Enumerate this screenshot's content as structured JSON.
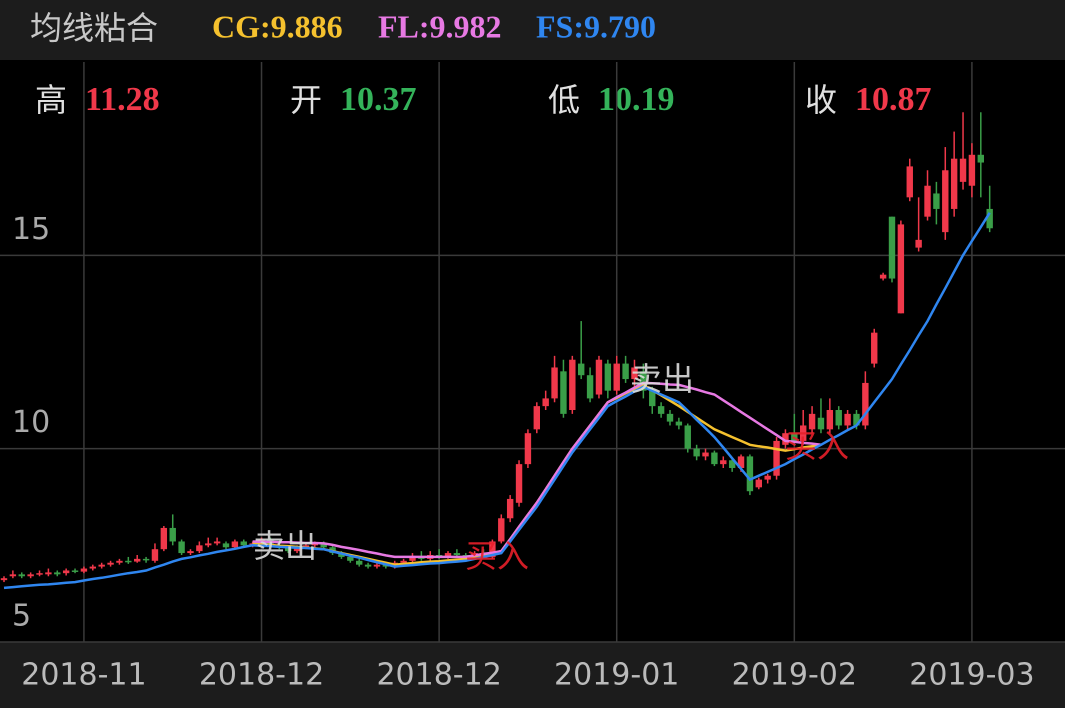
{
  "chart_data": {
    "type": "candlestick",
    "title": "均线粘合",
    "info": [
      {
        "label": "高",
        "value": 11.28,
        "color": "#f0384a"
      },
      {
        "label": "开",
        "value": 10.37,
        "color": "#34b35a"
      },
      {
        "label": "低",
        "value": 10.19,
        "color": "#34b35a"
      },
      {
        "label": "收",
        "value": 10.87,
        "color": "#f0384a"
      }
    ],
    "up_color": "#f0384a",
    "down_color": "#3a9e48",
    "ylim": [
      5,
      20
    ],
    "yticks": [
      5,
      10,
      15
    ],
    "grid": true,
    "categories": [
      null,
      null,
      null,
      null,
      null,
      null,
      null,
      null,
      null,
      "2018-11",
      null,
      null,
      null,
      null,
      null,
      null,
      null,
      null,
      null,
      null,
      null,
      null,
      null,
      null,
      null,
      null,
      null,
      null,
      null,
      "2018-12",
      null,
      null,
      null,
      null,
      null,
      null,
      null,
      null,
      null,
      null,
      null,
      null,
      null,
      null,
      null,
      null,
      null,
      null,
      null,
      "2018-12",
      null,
      null,
      null,
      null,
      null,
      null,
      null,
      null,
      null,
      null,
      null,
      null,
      null,
      null,
      null,
      null,
      null,
      null,
      null,
      "2019-01",
      null,
      null,
      null,
      null,
      null,
      null,
      null,
      null,
      null,
      null,
      null,
      null,
      null,
      null,
      null,
      null,
      null,
      null,
      null,
      "2019-02",
      null,
      null,
      null,
      null,
      null,
      null,
      null,
      null,
      null,
      null,
      null,
      null,
      null,
      null,
      null,
      null,
      null,
      null,
      null,
      "2019-03",
      null,
      null
    ],
    "ohlc": [
      [
        6.6,
        6.65,
        6.55,
        6.7
      ],
      [
        6.7,
        6.75,
        6.65,
        6.85
      ],
      [
        6.75,
        6.7,
        6.65,
        6.8
      ],
      [
        6.7,
        6.75,
        6.65,
        6.8
      ],
      [
        6.75,
        6.78,
        6.7,
        6.85
      ],
      [
        6.75,
        6.8,
        6.7,
        6.9
      ],
      [
        6.8,
        6.75,
        6.7,
        6.85
      ],
      [
        6.78,
        6.85,
        6.72,
        6.9
      ],
      [
        6.85,
        6.82,
        6.78,
        6.9
      ],
      [
        6.82,
        6.9,
        6.78,
        6.95
      ],
      [
        6.9,
        6.95,
        6.85,
        7.0
      ],
      [
        6.95,
        7.0,
        6.9,
        7.05
      ],
      [
        7.0,
        7.05,
        6.95,
        7.1
      ],
      [
        7.05,
        7.1,
        7.0,
        7.15
      ],
      [
        7.1,
        7.08,
        7.02,
        7.2
      ],
      [
        7.08,
        7.15,
        7.05,
        7.25
      ],
      [
        7.15,
        7.12,
        7.05,
        7.2
      ],
      [
        7.1,
        7.4,
        7.05,
        7.55
      ],
      [
        7.4,
        7.95,
        7.35,
        8.0
      ],
      [
        7.95,
        7.6,
        7.5,
        8.3
      ],
      [
        7.6,
        7.3,
        7.25,
        7.65
      ],
      [
        7.3,
        7.35,
        7.25,
        7.4
      ],
      [
        7.35,
        7.5,
        7.3,
        7.6
      ],
      [
        7.5,
        7.55,
        7.45,
        7.7
      ],
      [
        7.55,
        7.6,
        7.5,
        7.7
      ],
      [
        7.55,
        7.45,
        7.4,
        7.6
      ],
      [
        7.45,
        7.6,
        7.4,
        7.65
      ],
      [
        7.6,
        7.5,
        7.45,
        7.65
      ],
      [
        7.5,
        7.55,
        7.45,
        7.6
      ],
      [
        7.55,
        7.65,
        7.5,
        7.7
      ],
      [
        7.65,
        7.5,
        7.45,
        7.7
      ],
      [
        7.5,
        7.45,
        7.4,
        7.55
      ],
      [
        7.45,
        7.35,
        7.3,
        7.5
      ],
      [
        7.35,
        7.45,
        7.3,
        7.5
      ],
      [
        7.45,
        7.5,
        7.4,
        7.55
      ],
      [
        7.5,
        7.55,
        7.45,
        7.6
      ],
      [
        7.55,
        7.45,
        7.4,
        7.6
      ],
      [
        7.45,
        7.3,
        7.25,
        7.5
      ],
      [
        7.3,
        7.2,
        7.15,
        7.35
      ],
      [
        7.2,
        7.1,
        7.05,
        7.25
      ],
      [
        7.1,
        7.0,
        6.95,
        7.15
      ],
      [
        7.0,
        6.95,
        6.9,
        7.05
      ],
      [
        6.95,
        7.0,
        6.9,
        7.05
      ],
      [
        7.0,
        6.95,
        6.9,
        7.05
      ],
      [
        6.95,
        7.05,
        6.9,
        7.1
      ],
      [
        7.05,
        7.1,
        7.0,
        7.15
      ],
      [
        7.1,
        7.2,
        7.05,
        7.3
      ],
      [
        7.2,
        7.15,
        7.1,
        7.35
      ],
      [
        7.15,
        7.25,
        7.1,
        7.35
      ],
      [
        7.25,
        7.2,
        7.15,
        7.4
      ],
      [
        7.2,
        7.3,
        7.15,
        7.35
      ],
      [
        7.3,
        7.25,
        7.2,
        7.4
      ],
      [
        7.25,
        7.2,
        7.15,
        7.3
      ],
      [
        7.2,
        7.3,
        7.15,
        7.35
      ],
      [
        7.3,
        7.25,
        7.2,
        7.4
      ],
      [
        7.2,
        7.6,
        7.15,
        7.65
      ],
      [
        7.6,
        8.2,
        7.55,
        8.3
      ],
      [
        8.2,
        8.7,
        8.1,
        8.8
      ],
      [
        8.6,
        9.6,
        8.5,
        9.7
      ],
      [
        9.6,
        10.4,
        9.5,
        10.5
      ],
      [
        10.5,
        11.1,
        10.4,
        11.2
      ],
      [
        11.1,
        11.3,
        11.0,
        11.5
      ],
      [
        11.3,
        12.1,
        11.2,
        12.4
      ],
      [
        12.0,
        10.9,
        10.8,
        12.3
      ],
      [
        11.0,
        12.3,
        10.9,
        12.4
      ],
      [
        12.2,
        11.9,
        11.8,
        13.3
      ],
      [
        11.9,
        11.3,
        11.2,
        12.1
      ],
      [
        11.4,
        12.3,
        11.3,
        12.4
      ],
      [
        12.2,
        11.5,
        11.3,
        12.3
      ],
      [
        11.5,
        12.2,
        11.4,
        12.4
      ],
      [
        12.2,
        11.8,
        11.7,
        12.4
      ],
      [
        11.8,
        12.1,
        11.6,
        12.3
      ],
      [
        12.0,
        11.5,
        11.3,
        12.2
      ],
      [
        11.5,
        11.1,
        10.9,
        11.6
      ],
      [
        11.1,
        10.9,
        10.8,
        11.2
      ],
      [
        10.9,
        10.7,
        10.6,
        11.0
      ],
      [
        10.7,
        10.6,
        10.5,
        10.8
      ],
      [
        10.6,
        10.0,
        9.9,
        10.65
      ],
      [
        10.0,
        9.8,
        9.7,
        10.1
      ],
      [
        9.8,
        9.9,
        9.7,
        10.0
      ],
      [
        9.9,
        9.6,
        9.55,
        9.95
      ],
      [
        9.6,
        9.7,
        9.5,
        9.8
      ],
      [
        9.7,
        9.5,
        9.4,
        9.75
      ],
      [
        9.5,
        9.8,
        9.4,
        9.85
      ],
      [
        9.8,
        8.9,
        8.8,
        9.85
      ],
      [
        9.0,
        9.2,
        8.95,
        9.25
      ],
      [
        9.2,
        9.3,
        9.1,
        9.35
      ],
      [
        9.3,
        10.2,
        9.2,
        10.3
      ],
      [
        10.1,
        10.4,
        10.0,
        10.5
      ],
      [
        10.4,
        10.2,
        10.1,
        10.9
      ],
      [
        10.2,
        10.6,
        10.1,
        11.0
      ],
      [
        10.5,
        10.9,
        10.4,
        11.1
      ],
      [
        10.8,
        10.5,
        10.4,
        11.3
      ],
      [
        10.5,
        11.0,
        10.4,
        11.3
      ],
      [
        11.0,
        10.6,
        10.5,
        11.1
      ],
      [
        10.6,
        10.9,
        10.5,
        11.0
      ],
      [
        10.9,
        10.6,
        10.5,
        11.0
      ],
      [
        10.6,
        11.7,
        10.5,
        12.0
      ],
      [
        12.2,
        13.0,
        12.1,
        13.1
      ],
      [
        14.4,
        14.5,
        14.35,
        14.55
      ],
      [
        16.0,
        14.4,
        14.3,
        16.0
      ],
      [
        13.5,
        15.8,
        13.5,
        15.9
      ],
      [
        16.5,
        17.3,
        16.4,
        17.5
      ],
      [
        15.2,
        15.4,
        15.1,
        16.5
      ],
      [
        16.0,
        16.8,
        15.9,
        17.2
      ],
      [
        16.6,
        16.2,
        15.8,
        16.9
      ],
      [
        15.6,
        17.2,
        15.4,
        17.8
      ],
      [
        16.2,
        17.5,
        16.0,
        18.2
      ],
      [
        16.9,
        17.5,
        16.7,
        18.7
      ],
      [
        16.8,
        17.6,
        16.5,
        17.9
      ],
      [
        17.6,
        17.4,
        16.5,
        18.7
      ],
      [
        16.2,
        15.7,
        15.6,
        16.8
      ]
    ],
    "series": [
      {
        "name": "CG",
        "legend": "CG:9.886",
        "color": "#f5c12e",
        "values": [
          null,
          null,
          null,
          null,
          null,
          null,
          null,
          null,
          null,
          null,
          null,
          null,
          null,
          null,
          null,
          null,
          null,
          null,
          null,
          null,
          null,
          null,
          null,
          null,
          null,
          null,
          null,
          null,
          7.55,
          7.53,
          7.51,
          7.49,
          7.48,
          7.46,
          7.44,
          7.42,
          7.4,
          7.35,
          7.3,
          7.25,
          7.2,
          7.15,
          7.1,
          7.05,
          7.0,
          7.02,
          7.04,
          7.06,
          7.08,
          7.09,
          7.11,
          7.13,
          7.15,
          7.2,
          7.25,
          7.3,
          7.35,
          7.66,
          7.98,
          8.29,
          8.6,
          8.95,
          9.3,
          9.65,
          10.0,
          10.3,
          10.6,
          10.9,
          11.2,
          11.31,
          11.43,
          11.54,
          11.65,
          11.51,
          11.38,
          11.24,
          11.1,
          10.95,
          10.8,
          10.65,
          10.5,
          10.4,
          10.3,
          10.2,
          10.1,
          10.06,
          10.03,
          9.99,
          9.95,
          9.99,
          10.03,
          10.06,
          10.1,
          null,
          null,
          null,
          null,
          null,
          null,
          null,
          null,
          null,
          null,
          null,
          null,
          null,
          null,
          null,
          null,
          null,
          null,
          null
        ]
      },
      {
        "name": "FL",
        "legend": "FL:9.982",
        "color": "#e779e3",
        "values": [
          null,
          null,
          null,
          null,
          null,
          null,
          null,
          null,
          null,
          null,
          null,
          null,
          null,
          null,
          null,
          null,
          null,
          null,
          null,
          null,
          null,
          null,
          null,
          null,
          null,
          null,
          null,
          null,
          7.6,
          7.59,
          7.59,
          7.58,
          7.58,
          7.57,
          7.56,
          7.56,
          7.55,
          7.51,
          7.46,
          7.42,
          7.38,
          7.33,
          7.29,
          7.24,
          7.2,
          7.2,
          7.2,
          7.2,
          7.2,
          7.2,
          7.2,
          7.2,
          7.2,
          7.24,
          7.28,
          7.31,
          7.35,
          7.66,
          7.98,
          8.29,
          8.6,
          8.95,
          9.3,
          9.65,
          10.0,
          10.3,
          10.6,
          10.9,
          11.2,
          11.33,
          11.45,
          11.58,
          11.7,
          11.69,
          11.68,
          11.66,
          11.65,
          11.59,
          11.53,
          11.46,
          11.4,
          11.25,
          11.1,
          10.95,
          10.8,
          10.65,
          10.5,
          10.35,
          10.2,
          10.18,
          10.15,
          10.13,
          10.1,
          null,
          null,
          null,
          null,
          null,
          null,
          null,
          null,
          null,
          null,
          null,
          null,
          null,
          null,
          null,
          null,
          null,
          null,
          null
        ]
      },
      {
        "name": "FS",
        "legend": "FS:9.790",
        "color": "#2f86f0",
        "values": [
          6.4,
          6.42,
          6.44,
          6.46,
          6.48,
          6.49,
          6.51,
          6.53,
          6.55,
          6.59,
          6.63,
          6.66,
          6.7,
          6.74,
          6.78,
          6.81,
          6.85,
          6.93,
          7.0,
          7.08,
          7.15,
          7.19,
          7.24,
          7.28,
          7.33,
          7.37,
          7.41,
          7.46,
          7.5,
          7.49,
          7.48,
          7.46,
          7.45,
          7.44,
          7.43,
          7.41,
          7.4,
          7.34,
          7.29,
          7.23,
          7.18,
          7.12,
          7.06,
          7.01,
          6.95,
          6.97,
          6.99,
          7.01,
          7.03,
          7.04,
          7.06,
          7.08,
          7.1,
          7.15,
          7.2,
          7.25,
          7.3,
          7.6,
          7.9,
          8.2,
          8.5,
          8.85,
          9.2,
          9.55,
          9.9,
          10.2,
          10.5,
          10.8,
          11.1,
          11.23,
          11.35,
          11.48,
          11.6,
          11.5,
          11.4,
          11.3,
          11.2,
          10.98,
          10.75,
          10.53,
          10.3,
          10.03,
          9.75,
          9.48,
          9.2,
          9.3,
          9.4,
          9.5,
          9.6,
          9.73,
          9.85,
          9.98,
          10.1,
          10.23,
          10.35,
          10.48,
          10.6,
          10.9,
          11.2,
          11.5,
          11.8,
          12.18,
          12.55,
          12.93,
          13.3,
          13.73,
          14.15,
          14.58,
          15.0,
          15.37,
          15.73,
          16.1
        ]
      }
    ],
    "annotations": [
      {
        "text": "卖出",
        "color": "#dddddd"
      },
      {
        "text": "买入",
        "color": "#e8202a"
      },
      {
        "text": "卖出",
        "color": "#dddddd"
      },
      {
        "text": "买入",
        "color": "#e8202a"
      }
    ]
  }
}
